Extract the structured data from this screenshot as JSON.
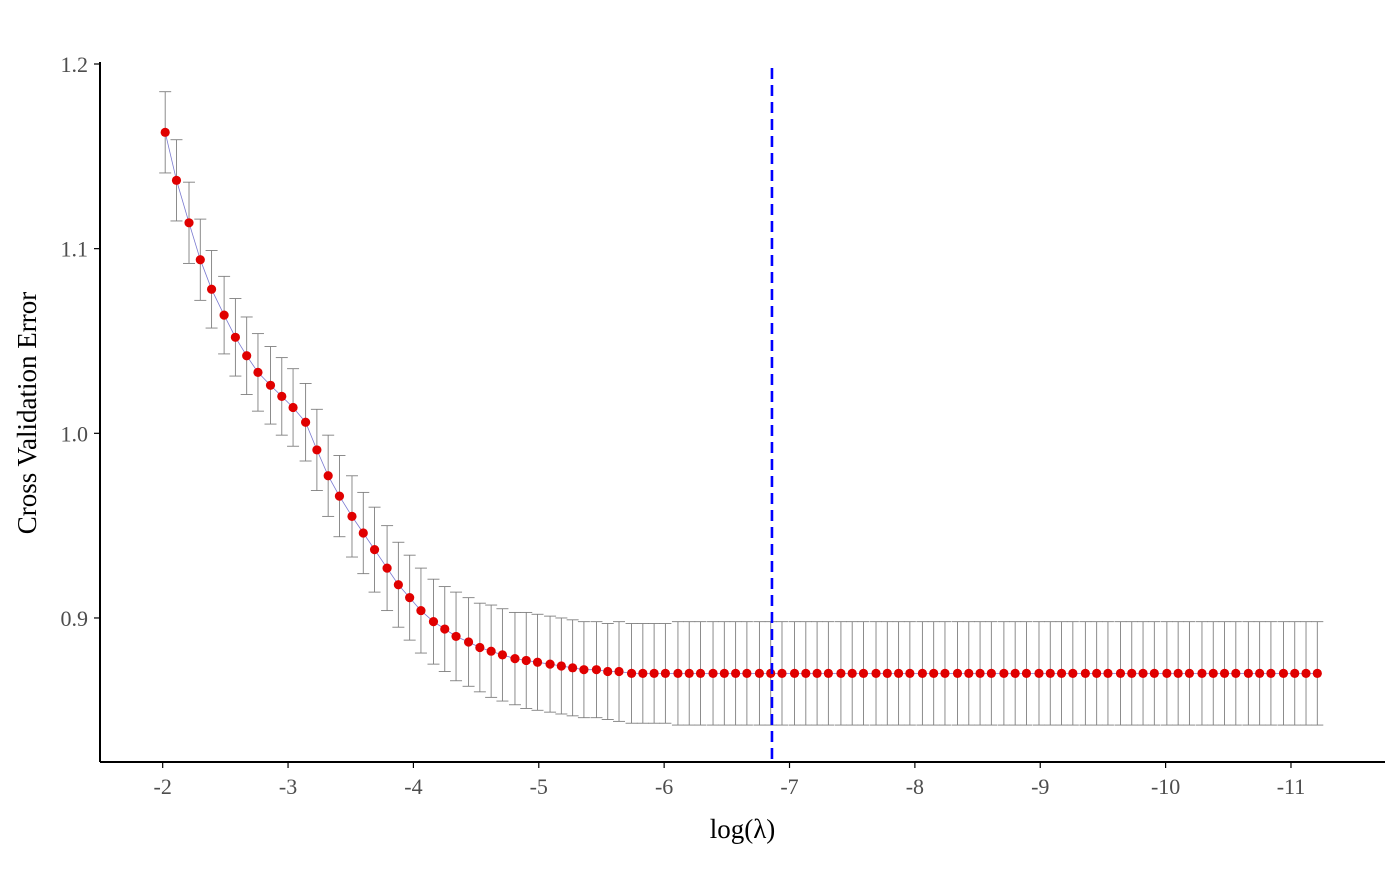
{
  "chart_data": {
    "type": "scatter",
    "title": "",
    "xlabel": "log(λ)",
    "ylabel": "Cross Validation Error",
    "x_axis_reversed": true,
    "xlim": [
      -1.5,
      -11.75
    ],
    "ylim": [
      0.822,
      1.2
    ],
    "xticks": [
      -2,
      -3,
      -4,
      -5,
      -6,
      -7,
      -8,
      -9,
      -10,
      -11
    ],
    "yticks": [
      0.9,
      1.0,
      1.1,
      1.2
    ],
    "xtick_labels": [
      "-2",
      "-3",
      "-4",
      "-5",
      "-6",
      "-7",
      "-8",
      "-9",
      "-10",
      "-11"
    ],
    "ytick_labels": [
      "0.9",
      "1.0",
      "1.1",
      "1.2"
    ],
    "grid": false,
    "legend": "none",
    "colors": {
      "points": "#e00000",
      "line": "#7a7ad0",
      "error_bars": "#7f7f7f",
      "vline": "#0000ff",
      "axis": "#000000",
      "tick_label": "#4d4d4d"
    },
    "vline": {
      "x": -6.86,
      "style": "dashed"
    },
    "series": [
      {
        "x": [
          -2.02,
          -2.11,
          -2.21,
          -2.3,
          -2.39,
          -2.49,
          -2.58,
          -2.67,
          -2.76,
          -2.86,
          -2.95,
          -3.04,
          -3.14,
          -3.23,
          -3.32,
          -3.41,
          -3.51,
          -3.6,
          -3.69,
          -3.79,
          -3.88,
          -3.97,
          -4.06,
          -4.16,
          -4.25,
          -4.34,
          -4.44,
          -4.53,
          -4.62,
          -4.71,
          -4.81,
          -4.9,
          -4.99,
          -5.09,
          -5.18,
          -5.27,
          -5.36,
          -5.46,
          -5.55,
          -5.64,
          -5.74,
          -5.83,
          -5.92,
          -6.01,
          -6.11,
          -6.2,
          -6.29,
          -6.39,
          -6.48,
          -6.57,
          -6.66,
          -6.76,
          -6.85,
          -6.94,
          -7.04,
          -7.13,
          -7.22,
          -7.31,
          -7.41,
          -7.5,
          -7.59,
          -7.69,
          -7.78,
          -7.87,
          -7.96,
          -8.06,
          -8.15,
          -8.24,
          -8.34,
          -8.43,
          -8.52,
          -8.61,
          -8.71,
          -8.8,
          -8.89,
          -8.99,
          -9.08,
          -9.17,
          -9.26,
          -9.36,
          -9.45,
          -9.54,
          -9.64,
          -9.73,
          -9.82,
          -9.91,
          -10.01,
          -10.1,
          -10.19,
          -10.29,
          -10.38,
          -10.47,
          -10.56,
          -10.66,
          -10.75,
          -10.84,
          -10.94,
          -11.03,
          -11.12,
          -11.21
        ],
        "y": [
          1.163,
          1.137,
          1.114,
          1.094,
          1.078,
          1.064,
          1.052,
          1.042,
          1.033,
          1.026,
          1.02,
          1.014,
          1.006,
          0.991,
          0.977,
          0.966,
          0.955,
          0.946,
          0.937,
          0.927,
          0.918,
          0.911,
          0.904,
          0.898,
          0.894,
          0.89,
          0.887,
          0.884,
          0.882,
          0.88,
          0.878,
          0.877,
          0.876,
          0.875,
          0.874,
          0.873,
          0.872,
          0.872,
          0.871,
          0.871,
          0.87,
          0.87,
          0.87,
          0.87,
          0.87,
          0.87,
          0.87,
          0.87,
          0.87,
          0.87,
          0.87,
          0.87,
          0.87,
          0.87,
          0.87,
          0.87,
          0.87,
          0.87,
          0.87,
          0.87,
          0.87,
          0.87,
          0.87,
          0.87,
          0.87,
          0.87,
          0.87,
          0.87,
          0.87,
          0.87,
          0.87,
          0.87,
          0.87,
          0.87,
          0.87,
          0.87,
          0.87,
          0.87,
          0.87,
          0.87,
          0.87,
          0.87,
          0.87,
          0.87,
          0.87,
          0.87,
          0.87,
          0.87,
          0.87,
          0.87,
          0.87,
          0.87,
          0.87,
          0.87,
          0.87,
          0.87,
          0.87,
          0.87,
          0.87,
          0.87
        ],
        "error": [
          0.022,
          0.022,
          0.022,
          0.022,
          0.021,
          0.021,
          0.021,
          0.021,
          0.021,
          0.021,
          0.021,
          0.021,
          0.021,
          0.022,
          0.022,
          0.022,
          0.022,
          0.022,
          0.023,
          0.023,
          0.023,
          0.023,
          0.023,
          0.023,
          0.023,
          0.024,
          0.024,
          0.024,
          0.025,
          0.025,
          0.025,
          0.026,
          0.026,
          0.026,
          0.026,
          0.026,
          0.026,
          0.026,
          0.026,
          0.027,
          0.027,
          0.027,
          0.027,
          0.027,
          0.028,
          0.028,
          0.028,
          0.028,
          0.028,
          0.028,
          0.028,
          0.028,
          0.028,
          0.028,
          0.028,
          0.028,
          0.028,
          0.028,
          0.028,
          0.028,
          0.028,
          0.028,
          0.028,
          0.028,
          0.028,
          0.028,
          0.028,
          0.028,
          0.028,
          0.028,
          0.028,
          0.028,
          0.028,
          0.028,
          0.028,
          0.028,
          0.028,
          0.028,
          0.028,
          0.028,
          0.028,
          0.028,
          0.028,
          0.028,
          0.028,
          0.028,
          0.028,
          0.028,
          0.028,
          0.028,
          0.028,
          0.028,
          0.028,
          0.028,
          0.028,
          0.028,
          0.028,
          0.028,
          0.028,
          0.028
        ]
      }
    ]
  }
}
